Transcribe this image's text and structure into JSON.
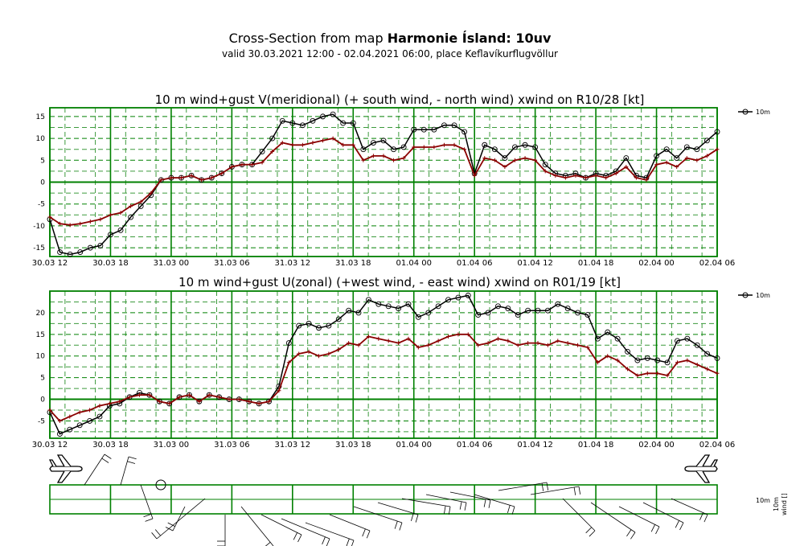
{
  "header": {
    "title_prefix": "Cross-Section from map ",
    "title_bold": "Harmonie Ísland: 10uv",
    "subtitle": "valid 30.03.2021 12:00 - 02.04.2021 06:00, place Keflavíkurflugvöllur"
  },
  "colors": {
    "wind": "#000000",
    "gust": "#8b0000",
    "grid": "#008000",
    "grid_dash": "#3c9a3c"
  },
  "chart_data": [
    {
      "type": "line",
      "title": "10 m wind+gust V(meridional) (+ south wind, - north wind) xwind on R10/28 [kt]",
      "ylim": [
        -17,
        17
      ],
      "yticks": [
        "15",
        "10",
        "5",
        "0",
        "-5",
        "-10",
        "-15"
      ],
      "ytick_values": [
        15,
        10,
        5,
        0,
        -5,
        -10,
        -15
      ],
      "xticks": [
        "30.03 12",
        "30.03 18",
        "31.03 00",
        "31.03 06",
        "31.03 12",
        "31.03 18",
        "01.04 00",
        "01.04 06",
        "01.04 12",
        "01.04 18",
        "02.04 00",
        "02.04 06"
      ],
      "legend": "10m",
      "series": [
        {
          "name": "wind",
          "values": [
            -8.5,
            -16,
            -16.5,
            -16,
            -15,
            -14.5,
            -12,
            -11,
            -8,
            -5.5,
            -3,
            0.5,
            1,
            1,
            1.5,
            0.5,
            1,
            2,
            3.5,
            4,
            4,
            7,
            10,
            14,
            13.5,
            13,
            14,
            15,
            15.5,
            13.5,
            13.5,
            7.5,
            9,
            9.5,
            7.5,
            8,
            12,
            12,
            12,
            13,
            13,
            11.5,
            2,
            8.5,
            7.5,
            5.5,
            8,
            8.5,
            8,
            4,
            2,
            1.5,
            2,
            1,
            2,
            1.5,
            2.5,
            5.5,
            1.5,
            1,
            6,
            7.5,
            5.5,
            8,
            7.5,
            9.5,
            11.5
          ]
        },
        {
          "name": "gust",
          "values": [
            -8,
            -9.5,
            -9.8,
            -9.5,
            -9,
            -8.5,
            -7.5,
            -7,
            -5.5,
            -4.5,
            -2.5,
            0.5,
            1,
            1,
            1.5,
            0.5,
            1,
            2,
            3.5,
            4,
            4,
            4.5,
            7,
            9,
            8.5,
            8.5,
            9,
            9.5,
            10,
            8.5,
            8.5,
            5,
            6,
            6,
            5,
            5.5,
            8,
            8,
            8,
            8.5,
            8.5,
            7.5,
            1.5,
            5.5,
            5,
            3.5,
            5,
            5.5,
            5,
            2.5,
            1.5,
            1,
            1.5,
            1,
            1.5,
            1,
            2,
            3.5,
            1,
            0.5,
            4,
            4.5,
            3.5,
            5.5,
            5,
            6,
            7.5
          ]
        }
      ]
    },
    {
      "type": "line",
      "title": "10 m wind+gust U(zonal) (+west wind, - east wind) xwind on R01/19 [kt]",
      "ylim": [
        -9,
        25
      ],
      "yticks": [
        "20",
        "15",
        "10",
        "5",
        "0",
        "-5"
      ],
      "ytick_values": [
        20,
        15,
        10,
        5,
        0,
        -5
      ],
      "xticks": [
        "30.03 12",
        "30.03 18",
        "31.03 00",
        "31.03 06",
        "31.03 12",
        "31.03 18",
        "01.04 00",
        "01.04 06",
        "01.04 12",
        "01.04 18",
        "02.04 00",
        "02.04 06"
      ],
      "legend": "10m",
      "series": [
        {
          "name": "wind",
          "values": [
            -3,
            -8,
            -7,
            -6,
            -5,
            -4,
            -1.5,
            -1,
            0.5,
            1.5,
            1,
            -0.5,
            -1,
            0.5,
            1,
            -0.5,
            1,
            0.5,
            0,
            0,
            -0.5,
            -1,
            -0.5,
            3,
            13,
            17,
            17.5,
            16.5,
            17,
            18.5,
            20.5,
            20,
            23,
            22,
            21.5,
            21,
            22,
            19,
            20,
            21.5,
            23,
            23.5,
            24,
            19.5,
            20,
            21.5,
            21,
            19.5,
            20.5,
            20.5,
            20.5,
            22,
            21,
            20,
            19.5,
            14,
            15.5,
            14,
            11,
            9,
            9.5,
            9,
            8.5,
            13.5,
            14,
            12.5,
            10.5,
            9.5
          ]
        },
        {
          "name": "gust",
          "values": [
            -2.5,
            -5,
            -4,
            -3,
            -2.5,
            -1.5,
            -1,
            -0.5,
            0.5,
            1,
            1,
            -0.5,
            -1,
            0.5,
            1,
            -0.5,
            1,
            0.5,
            0,
            0,
            -0.5,
            -1,
            -0.5,
            2,
            8.5,
            10.5,
            11,
            10,
            10.5,
            11.5,
            13,
            12.5,
            14.5,
            14,
            13.5,
            13,
            14,
            12,
            12.5,
            13.5,
            14.5,
            15,
            15,
            12.5,
            13,
            14,
            13.5,
            12.5,
            13,
            13,
            12.5,
            13.5,
            13,
            12.5,
            12,
            8.5,
            10,
            9,
            7,
            5.5,
            6,
            6,
            5.5,
            8.5,
            9,
            8,
            7,
            6
          ]
        }
      ]
    }
  ]
}
